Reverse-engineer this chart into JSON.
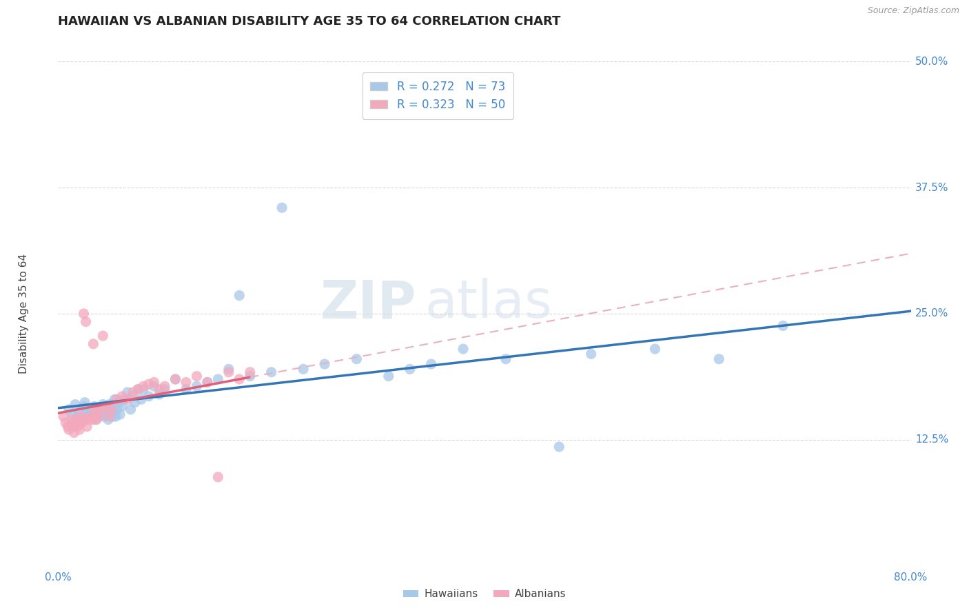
{
  "title": "HAWAIIAN VS ALBANIAN DISABILITY AGE 35 TO 64 CORRELATION CHART",
  "source": "Source: ZipAtlas.com",
  "ylabel": "Disability Age 35 to 64",
  "xlim": [
    0.0,
    0.8
  ],
  "ylim": [
    0.0,
    0.5
  ],
  "xticks": [
    0.0,
    0.2,
    0.4,
    0.6,
    0.8
  ],
  "xticklabels": [
    "0.0%",
    "",
    "",
    "",
    "80.0%"
  ],
  "yticks": [
    0.0,
    0.125,
    0.25,
    0.375,
    0.5
  ],
  "yticklabels_right": [
    "",
    "12.5%",
    "25.0%",
    "37.5%",
    "50.0%"
  ],
  "hawaiian_color": "#a8c8e8",
  "albanian_color": "#f4a8bc",
  "hawaiian_line_color": "#3375b5",
  "albanian_line_color": "#e0607a",
  "albanian_dashed_color": "#e8b0c0",
  "R_hawaiian": 0.272,
  "N_hawaiian": 73,
  "R_albanian": 0.323,
  "N_albanian": 50,
  "watermark_zip": "ZIP",
  "watermark_atlas": "atlas",
  "background_color": "#ffffff",
  "grid_color": "#d8d8d8",
  "tick_color": "#4488cc",
  "hawaiian_x": [
    0.01,
    0.013,
    0.016,
    0.018,
    0.02,
    0.022,
    0.024,
    0.025,
    0.026,
    0.028,
    0.03,
    0.031,
    0.032,
    0.033,
    0.034,
    0.035,
    0.036,
    0.037,
    0.038,
    0.039,
    0.04,
    0.041,
    0.042,
    0.043,
    0.044,
    0.045,
    0.046,
    0.047,
    0.048,
    0.05,
    0.051,
    0.052,
    0.053,
    0.054,
    0.055,
    0.057,
    0.058,
    0.06,
    0.062,
    0.065,
    0.068,
    0.07,
    0.072,
    0.075,
    0.078,
    0.08,
    0.085,
    0.09,
    0.095,
    0.1,
    0.11,
    0.12,
    0.13,
    0.14,
    0.15,
    0.16,
    0.17,
    0.18,
    0.2,
    0.21,
    0.23,
    0.25,
    0.28,
    0.31,
    0.33,
    0.35,
    0.38,
    0.42,
    0.47,
    0.5,
    0.56,
    0.62,
    0.68
  ],
  "hawaiian_y": [
    0.155,
    0.15,
    0.16,
    0.148,
    0.152,
    0.145,
    0.158,
    0.162,
    0.155,
    0.148,
    0.15,
    0.155,
    0.148,
    0.152,
    0.158,
    0.145,
    0.15,
    0.155,
    0.148,
    0.152,
    0.15,
    0.155,
    0.16,
    0.148,
    0.155,
    0.152,
    0.158,
    0.145,
    0.16,
    0.155,
    0.148,
    0.152,
    0.165,
    0.148,
    0.155,
    0.162,
    0.15,
    0.158,
    0.165,
    0.172,
    0.155,
    0.168,
    0.162,
    0.175,
    0.165,
    0.175,
    0.168,
    0.178,
    0.17,
    0.175,
    0.185,
    0.175,
    0.178,
    0.182,
    0.185,
    0.195,
    0.268,
    0.188,
    0.192,
    0.355,
    0.195,
    0.2,
    0.205,
    0.188,
    0.195,
    0.2,
    0.215,
    0.205,
    0.118,
    0.21,
    0.215,
    0.205,
    0.238
  ],
  "albanian_x": [
    0.005,
    0.007,
    0.009,
    0.01,
    0.012,
    0.013,
    0.014,
    0.015,
    0.016,
    0.017,
    0.018,
    0.019,
    0.02,
    0.021,
    0.022,
    0.024,
    0.025,
    0.026,
    0.027,
    0.028,
    0.03,
    0.032,
    0.033,
    0.034,
    0.035,
    0.036,
    0.038,
    0.04,
    0.042,
    0.045,
    0.048,
    0.05,
    0.055,
    0.06,
    0.065,
    0.07,
    0.075,
    0.08,
    0.085,
    0.09,
    0.095,
    0.1,
    0.11,
    0.12,
    0.13,
    0.14,
    0.15,
    0.16,
    0.17,
    0.18
  ],
  "albanian_y": [
    0.148,
    0.142,
    0.138,
    0.135,
    0.14,
    0.145,
    0.138,
    0.132,
    0.14,
    0.145,
    0.138,
    0.142,
    0.135,
    0.148,
    0.142,
    0.25,
    0.145,
    0.242,
    0.138,
    0.145,
    0.148,
    0.145,
    0.22,
    0.148,
    0.155,
    0.145,
    0.148,
    0.155,
    0.228,
    0.158,
    0.148,
    0.155,
    0.165,
    0.168,
    0.165,
    0.172,
    0.175,
    0.178,
    0.18,
    0.182,
    0.175,
    0.178,
    0.185,
    0.182,
    0.188,
    0.182,
    0.088,
    0.192,
    0.185,
    0.192
  ]
}
